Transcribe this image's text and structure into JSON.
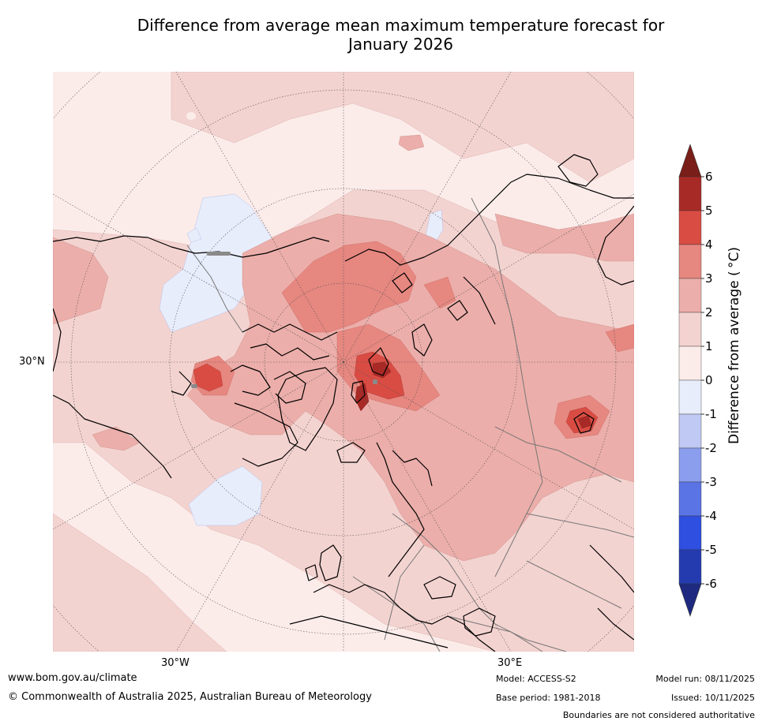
{
  "title_line1": "Difference from average mean maximum temperature forecast for",
  "title_line2": "January 2026",
  "map": {
    "lat_label": "30°N",
    "lon_labels": [
      "30°W",
      "30°E"
    ]
  },
  "colorbar": {
    "label": "Difference from average ( °C)",
    "ticks": [
      "6",
      "5",
      "4",
      "3",
      "2",
      "1",
      "0",
      "-1",
      "-2",
      "-3",
      "-4",
      "-5",
      "-6"
    ],
    "colors": {
      "over": "#7a1e19",
      "5_6": "#a82a26",
      "4_5": "#d94c43",
      "3_4": "#e68780",
      "2_3": "#ecaeaa",
      "1_2": "#f3d3d0",
      "0_1": "#fbecea",
      "m1_0": "#e8edfb",
      "m2_m1": "#c0c9f4",
      "m3_m2": "#8b9ded",
      "m4_m3": "#5a74e5",
      "m5_m4": "#2f4fe0",
      "m6_m5": "#243bb0",
      "under": "#1e2a80"
    }
  },
  "footer": {
    "website": "www.bom.gov.au/climate",
    "copyright": "© Commonwealth of Australia 2025, Australian Bureau of Meteorology",
    "model": "Model: ACCESS-S2",
    "base_period": "Base period: 1981-2018",
    "model_run": "Model run: 08/11/2025",
    "issued": "Issued: 10/11/2025",
    "boundaries": "Boundaries are not considered authoritative"
  }
}
